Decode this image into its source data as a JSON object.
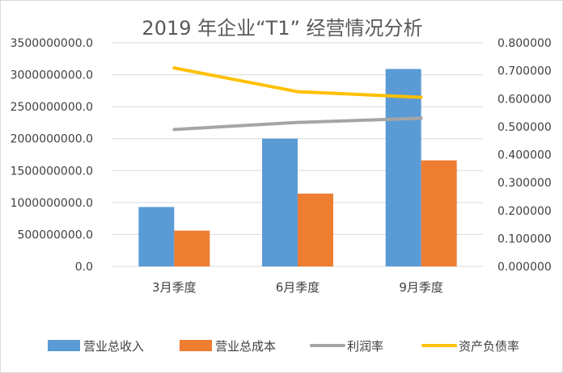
{
  "chart_data": {
    "type": "bar",
    "title": "2019 年企业“T1” 经营情况分析",
    "categories": [
      "3月季度",
      "6月季度",
      "9月季度"
    ],
    "series": [
      {
        "name": "营业总收入",
        "type": "bar",
        "axis": "left",
        "color": "#5b9bd5",
        "values": [
          930000000,
          2000000000,
          3090000000
        ]
      },
      {
        "name": "营业总成本",
        "type": "bar",
        "axis": "left",
        "color": "#ed7d31",
        "values": [
          560000000,
          1140000000,
          1660000000
        ]
      },
      {
        "name": "利润率",
        "type": "line",
        "axis": "right",
        "color": "#a5a5a5",
        "values": [
          0.49,
          0.515,
          0.53
        ]
      },
      {
        "name": "资产负债率",
        "type": "line",
        "axis": "right",
        "color": "#ffc000",
        "values": [
          0.71,
          0.625,
          0.605
        ]
      }
    ],
    "y_left": {
      "range": [
        0,
        3500000000
      ],
      "ticks": [
        "0.0",
        "500000000.0",
        "1000000000.0",
        "1500000000.0",
        "2000000000.0",
        "2500000000.0",
        "3000000000.0",
        "3500000000.0"
      ]
    },
    "y_right": {
      "range": [
        0,
        0.8
      ],
      "ticks": [
        "0.000000",
        "0.100000",
        "0.200000",
        "0.300000",
        "0.400000",
        "0.500000",
        "0.600000",
        "0.700000",
        "0.800000"
      ]
    },
    "grid": "horizontal",
    "legend_position": "bottom"
  }
}
